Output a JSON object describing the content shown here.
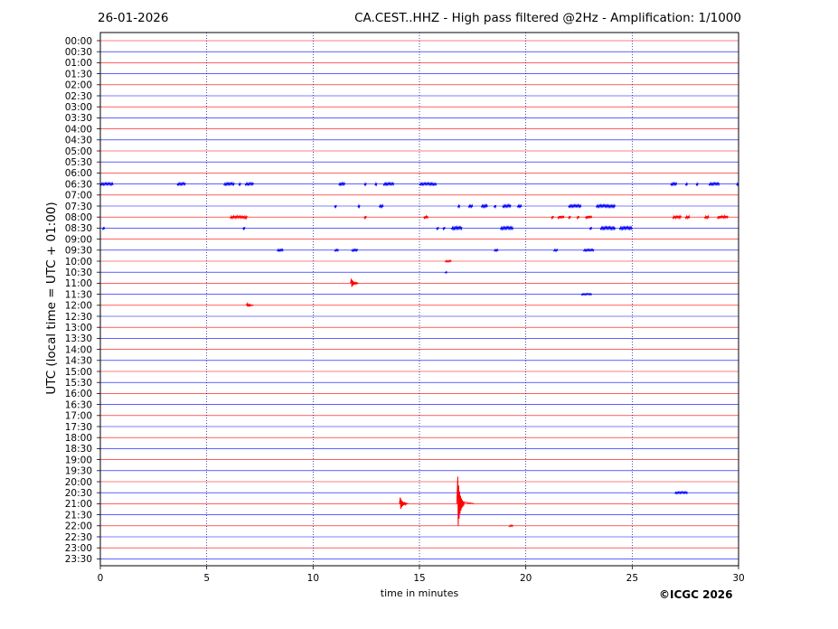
{
  "header": {
    "date": "26-01-2026",
    "title": "CA.CEST..HHZ - High pass filtered @2Hz - Amplification: 1/1000"
  },
  "footer": {
    "copyright": "©ICGC 2026"
  },
  "chart_data": {
    "type": "line",
    "xlabel": "time in minutes",
    "ylabel": "UTC (local time = UTC + 01:00)",
    "xlim": [
      0,
      30
    ],
    "xticks": [
      0,
      5,
      10,
      15,
      20,
      25,
      30
    ],
    "rows": [
      "00:00",
      "00:30",
      "01:00",
      "01:30",
      "02:00",
      "02:30",
      "03:00",
      "03:30",
      "04:00",
      "04:30",
      "05:00",
      "05:30",
      "06:00",
      "06:30",
      "07:00",
      "07:30",
      "08:00",
      "08:30",
      "09:00",
      "09:30",
      "10:00",
      "10:30",
      "11:00",
      "11:30",
      "12:00",
      "12:30",
      "13:00",
      "13:30",
      "14:00",
      "14:30",
      "15:00",
      "15:30",
      "16:00",
      "16:30",
      "17:00",
      "17:30",
      "18:00",
      "18:30",
      "19:00",
      "19:30",
      "20:00",
      "20:30",
      "21:00",
      "21:30",
      "22:00",
      "22:30",
      "23:00",
      "23:30"
    ],
    "trace_colors": [
      "#ff0000",
      "#0000ff"
    ],
    "grid": "vertical-dotted",
    "events": [
      {
        "row": "06:30",
        "segments": [
          [
            0,
            0.6
          ],
          [
            3.6,
            4.0
          ],
          [
            5.8,
            6.3
          ],
          [
            6.5,
            6.6
          ],
          [
            6.8,
            7.2
          ],
          [
            11.2,
            11.5
          ],
          [
            12.4,
            12.5
          ],
          [
            12.9,
            13.0
          ],
          [
            13.3,
            13.8
          ],
          [
            15.0,
            15.8
          ],
          [
            26.8,
            27.1
          ],
          [
            27.5,
            27.6
          ],
          [
            28.0,
            28.1
          ],
          [
            28.6,
            29.1
          ],
          [
            29.9,
            30.0
          ]
        ],
        "amp": 1.2
      },
      {
        "row": "07:30",
        "segments": [
          [
            11.0,
            11.1
          ],
          [
            12.1,
            12.2
          ],
          [
            13.1,
            13.3
          ],
          [
            16.8,
            16.9
          ],
          [
            17.3,
            17.5
          ],
          [
            17.9,
            18.2
          ],
          [
            18.5,
            18.6
          ],
          [
            18.9,
            19.3
          ],
          [
            19.6,
            19.8
          ],
          [
            22.0,
            22.6
          ],
          [
            23.3,
            24.2
          ]
        ],
        "amp": 1.3
      },
      {
        "row": "08:00",
        "segments": [
          [
            6.1,
            6.9
          ],
          [
            12.4,
            12.5
          ],
          [
            15.2,
            15.4
          ],
          [
            21.2,
            21.3
          ],
          [
            21.5,
            21.8
          ],
          [
            22.0,
            22.1
          ],
          [
            22.4,
            22.5
          ],
          [
            22.8,
            23.1
          ],
          [
            26.9,
            27.3
          ],
          [
            27.5,
            27.7
          ],
          [
            28.4,
            28.6
          ],
          [
            29.0,
            29.5
          ]
        ],
        "amp": 1.5
      },
      {
        "row": "08:30",
        "segments": [
          [
            0.1,
            0.2
          ],
          [
            6.7,
            6.8
          ],
          [
            15.8,
            15.9
          ],
          [
            16.1,
            16.2
          ],
          [
            16.5,
            17.0
          ],
          [
            18.8,
            19.4
          ],
          [
            23.0,
            23.1
          ],
          [
            23.5,
            24.2
          ],
          [
            24.4,
            25.0
          ]
        ],
        "amp": 1.4
      },
      {
        "row": "09:30",
        "segments": [
          [
            8.3,
            8.6
          ],
          [
            11.0,
            11.2
          ],
          [
            11.8,
            12.1
          ],
          [
            18.5,
            18.7
          ],
          [
            21.3,
            21.5
          ],
          [
            22.7,
            23.2
          ]
        ],
        "amp": 1.0
      },
      {
        "row": "10:00",
        "segments": [
          [
            16.2,
            16.5
          ]
        ],
        "amp": 0.8
      },
      {
        "row": "10:30",
        "segments": [
          [
            16.2,
            16.3
          ]
        ],
        "amp": 0.8
      },
      {
        "row": "11:00",
        "spikes": [
          {
            "t": 11.8,
            "amp": 5
          }
        ]
      },
      {
        "row": "11:30",
        "segments": [
          [
            22.6,
            23.1
          ]
        ],
        "amp": 0.8
      },
      {
        "row": "12:00",
        "spikes": [
          {
            "t": 6.9,
            "amp": 2
          }
        ]
      },
      {
        "row": "20:30",
        "segments": [
          [
            27.0,
            27.6
          ]
        ],
        "amp": 1.0
      },
      {
        "row": "21:00",
        "spikes": [
          {
            "t": 14.1,
            "amp": 7
          },
          {
            "t": 16.8,
            "amp": 30
          }
        ]
      },
      {
        "row": "22:00",
        "segments": [
          [
            19.2,
            19.4
          ]
        ],
        "amp": 0.8
      }
    ]
  }
}
